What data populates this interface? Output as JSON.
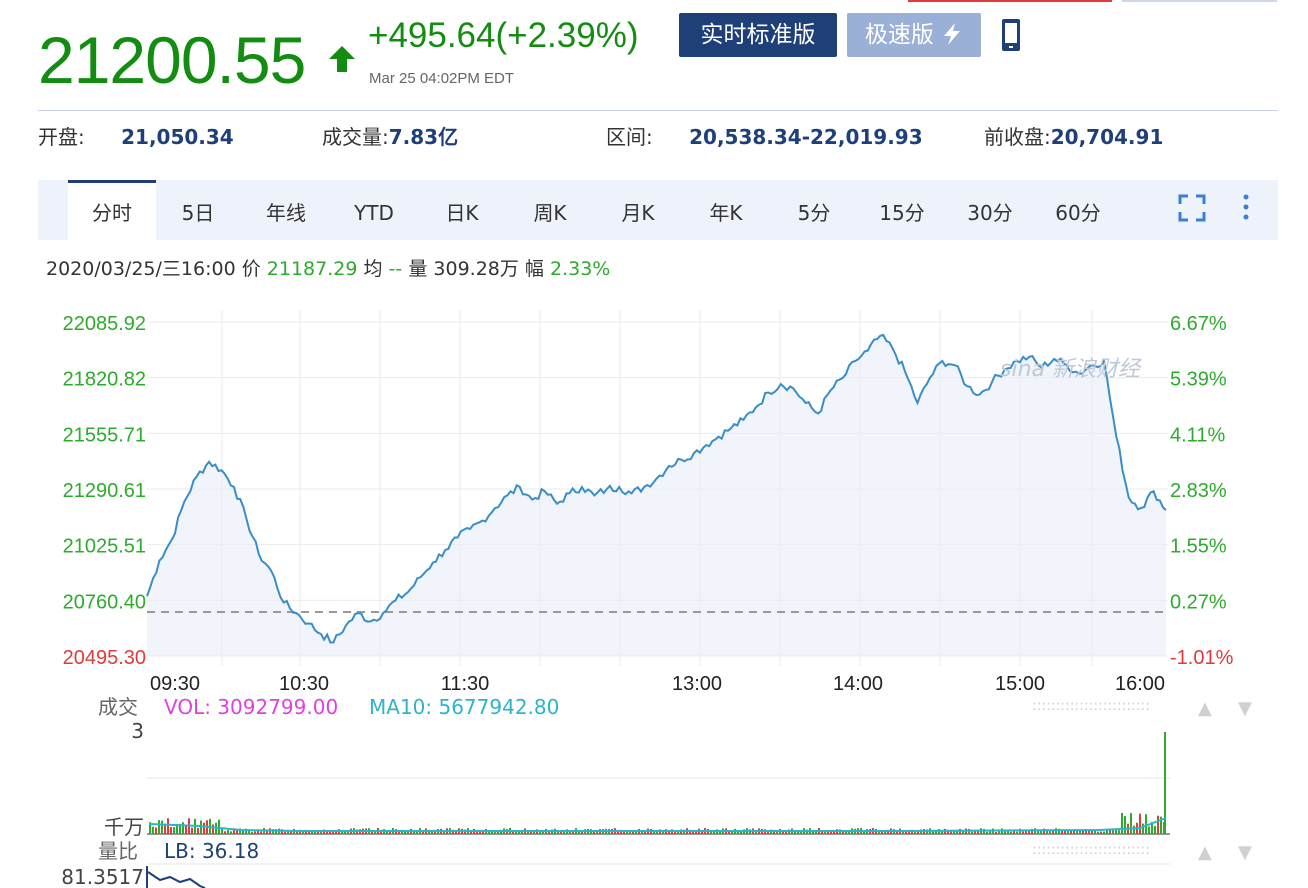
{
  "quote": {
    "price": "21200.55",
    "change": "+495.64(+2.39%)",
    "timestamp": "Mar 25 04:02PM EDT",
    "color": "#128d12",
    "direction_icon": "up-arrow-icon"
  },
  "header_buttons": {
    "standard": "实时标准版",
    "fast": "极速版",
    "fast_icon": "lightning-icon",
    "mobile_icon": "mobile-phone-icon"
  },
  "stats": {
    "open_label": "开盘:",
    "open_value": "21,050.34",
    "volume_label": "成交量:",
    "volume_value": "7.83亿",
    "range_label": "区间:",
    "range_value": "20,538.34-22,019.93",
    "prev_close_label": "前收盘:",
    "prev_close_value": "20,704.91"
  },
  "tabs": [
    "分时",
    "5日",
    "年线",
    "YTD",
    "日K",
    "周K",
    "月K",
    "年K",
    "5分",
    "15分",
    "30分",
    "60分"
  ],
  "active_tab": "分时",
  "toolbar_icons": [
    "fullscreen-icon",
    "more-menu-icon"
  ],
  "infobar": {
    "datetime": "2020/03/25/三16:00",
    "price_label": "价",
    "price": "21187.29",
    "avg_label": "均",
    "avg": "--",
    "vol_label": "量",
    "vol": "309.28万",
    "amp_label": "幅",
    "amp": "2.33%"
  },
  "watermark": "sina 新浪财经",
  "volume_panel": {
    "title": "成交",
    "vol_text": "VOL: 3092799.00",
    "ma_text": "MA10: 5677942.80",
    "y_top": "3",
    "unit": "千万"
  },
  "lb_panel": {
    "title": "量比",
    "lb_text": "LB: 36.18",
    "y_top": "81.3517"
  },
  "chart_data": {
    "type": "line",
    "y_ticks": [
      "22085.92",
      "21820.82",
      "21555.71",
      "21290.61",
      "21025.51",
      "20760.40",
      "20495.30"
    ],
    "y_ticks_pct": [
      "6.67%",
      "5.39%",
      "4.11%",
      "2.83%",
      "1.55%",
      "0.27%",
      "-1.01%"
    ],
    "x_ticks": [
      "09:30",
      "10:30",
      "11:30",
      "13:00",
      "14:00",
      "15:00",
      "16:00"
    ],
    "ylim": [
      20495.3,
      22085.92
    ],
    "prev_close": 20704.91,
    "grid": true,
    "series": [
      {
        "values": [
          20780,
          20950,
          21050,
          21230,
          21350,
          21420,
          21380,
          21300,
          21150,
          20980,
          20900,
          20750,
          20700,
          20650,
          20600,
          20560,
          20640,
          20700,
          20660,
          20700,
          20760,
          20800,
          20870,
          20940,
          21000,
          21060,
          21100,
          21140,
          21200,
          21260,
          21300,
          21240,
          21280,
          21220,
          21270,
          21300,
          21260,
          21290,
          21300,
          21270,
          21300,
          21340,
          21400,
          21430,
          21460,
          21500,
          21540,
          21580,
          21620,
          21680,
          21750,
          21790,
          21770,
          21700,
          21650,
          21760,
          21820,
          21900,
          21950,
          22020,
          21960,
          21850,
          21700,
          21820,
          21900,
          21880,
          21780,
          21740,
          21800,
          21860,
          21900,
          21920,
          21870,
          21910,
          21880,
          21840,
          21880,
          21900,
          21540,
          21250,
          21200,
          21280,
          21190
        ]
      }
    ]
  }
}
